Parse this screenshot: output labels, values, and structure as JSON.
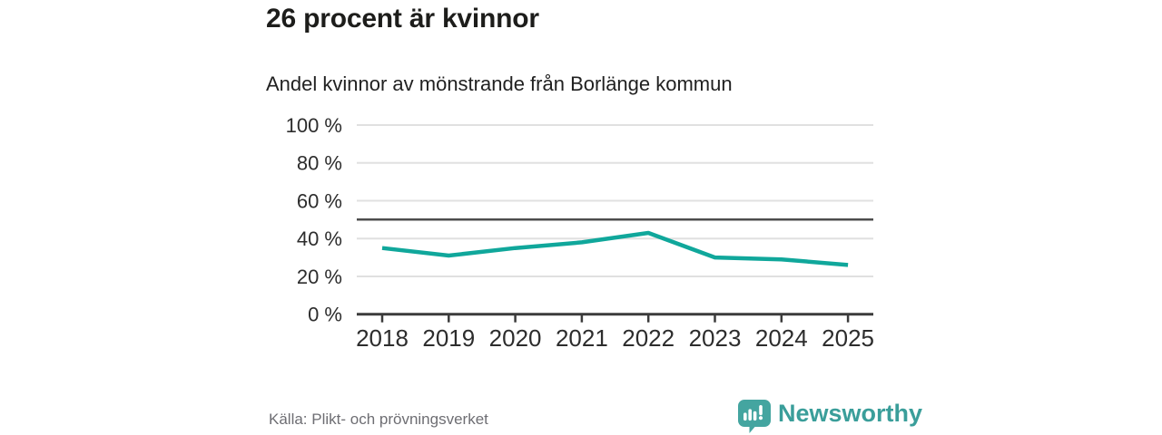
{
  "chart_data": {
    "type": "line",
    "title": "26 procent är kvinnor",
    "subtitle": "Andel kvinnor av mönstrande från Borlänge kommun",
    "categories": [
      "2018",
      "2019",
      "2020",
      "2021",
      "2022",
      "2023",
      "2024",
      "2025"
    ],
    "values": [
      35,
      31,
      35,
      38,
      43,
      30,
      29,
      26
    ],
    "unit": "%",
    "xlabel": "",
    "ylabel": "",
    "ylim": [
      0,
      100
    ],
    "yticks": [
      0,
      20,
      40,
      60,
      80,
      100
    ],
    "ytick_suffix": " %",
    "reference_line": 50,
    "grid": true,
    "legend": false,
    "colors": {
      "line": "#10a79b",
      "grid": "#e0e0e0",
      "reference": "#4d4d4d",
      "axis": "#3b3b3b"
    }
  },
  "footer": {
    "source": "Källa: Plikt- och prövningsverket",
    "logo_text": "Newsworthy",
    "logo_color": "#3a9e9a",
    "logo_icon": "speech-bubble-bar-chart-icon",
    "logo_icon_color": "#44a5a0"
  },
  "theme": {
    "background": "#ffffff",
    "text": "#1d1d1b",
    "muted_text": "#6e6e73"
  }
}
